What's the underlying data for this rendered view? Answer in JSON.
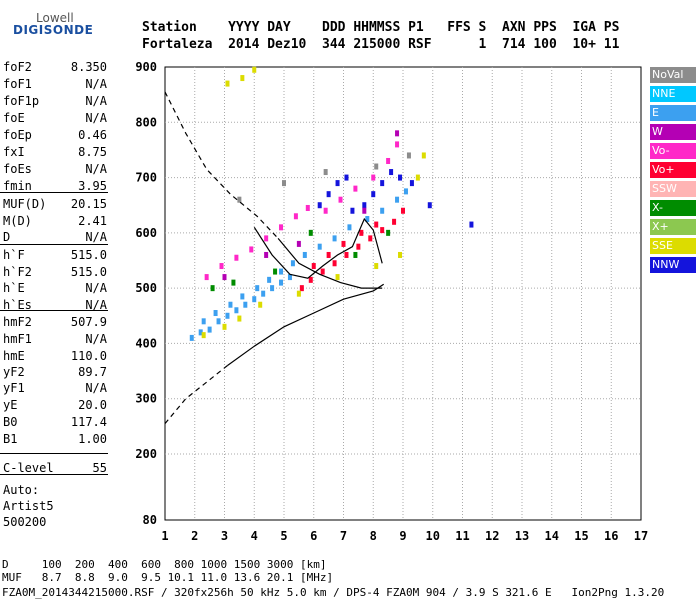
{
  "logo": {
    "top": "Lowell",
    "bottom": "DIGISONDE"
  },
  "header": {
    "line1": "Station    YYYY DAY    DDD HHMMSS P1   FFS S  AXN PPS  IGA PS",
    "line2": "Fortaleza  2014 Dez10  344 215000 RSF      1  714 100  10+ 11"
  },
  "params": [
    {
      "name": "foF2",
      "value": "8.350"
    },
    {
      "name": "foF1",
      "value": "N/A"
    },
    {
      "name": "foF1p",
      "value": "N/A"
    },
    {
      "name": "foE",
      "value": "N/A"
    },
    {
      "name": "foEp",
      "value": "0.46"
    },
    {
      "name": "fxI",
      "value": "8.75"
    },
    {
      "name": "foEs",
      "value": "N/A"
    },
    {
      "name": "fmin",
      "value": "3.95"
    },
    {
      "name": "MUF(D)",
      "value": "20.15"
    },
    {
      "name": "M(D)",
      "value": "2.41"
    },
    {
      "name": "D",
      "value": "N/A"
    },
    {
      "name": "h`F",
      "value": "515.0"
    },
    {
      "name": "h`F2",
      "value": "515.0"
    },
    {
      "name": "h`E",
      "value": "N/A"
    },
    {
      "name": "h`Es",
      "value": "N/A"
    },
    {
      "name": "hmF2",
      "value": "507.9"
    },
    {
      "name": "hmF1",
      "value": "N/A"
    },
    {
      "name": "hmE",
      "value": "110.0"
    },
    {
      "name": "yF2",
      "value": "89.7"
    },
    {
      "name": "yF1",
      "value": "N/A"
    },
    {
      "name": "yE",
      "value": "20.0"
    },
    {
      "name": "B0",
      "value": "117.4"
    },
    {
      "name": "B1",
      "value": "1.00"
    },
    {
      "name": "C-level",
      "value": "55"
    }
  ],
  "misc": {
    "auto": "Auto:",
    "artist": "Artist5",
    "version": "500200"
  },
  "legend": [
    {
      "label": "NoVal",
      "color": "#8c8c8c"
    },
    {
      "label": "NNE",
      "color": "#00c8ff"
    },
    {
      "label": "E",
      "color": "#3ca0f0"
    },
    {
      "label": "W",
      "color": "#b400b4"
    },
    {
      "label": "Vo-",
      "color": "#ff28c8"
    },
    {
      "label": "Vo+",
      "color": "#ff0032"
    },
    {
      "label": "SSW",
      "color": "#ffb4b4"
    },
    {
      "label": "X-",
      "color": "#008c00"
    },
    {
      "label": "X+",
      "color": "#8cc850"
    },
    {
      "label": "SSE",
      "color": "#dcdc00"
    },
    {
      "label": "NNW",
      "color": "#1414dc"
    }
  ],
  "footer": {
    "line1": "D     100  200  400  600  800 1000 1500 3000 [km]",
    "line2": "MUF   8.7  8.8  9.0  9.5 10.1 11.0 13.6 20.1 [MHz]",
    "line3": "FZA0M_2014344215000.RSF / 320fx256h 50 kHz 5.0 km / DPS-4 FZA0M 904 / 3.9 S 321.6 E   Ion2Png 1.3.20"
  },
  "chart_data": {
    "type": "scatter",
    "title": "",
    "xlabel": "",
    "ylabel": "",
    "x_ticks": [
      1,
      2,
      3,
      4,
      5,
      6,
      7,
      8,
      9,
      10,
      11,
      12,
      13,
      14,
      15,
      16,
      17
    ],
    "y_ticks": [
      80,
      200,
      300,
      400,
      500,
      600,
      700,
      800,
      900
    ],
    "xlim": [
      1,
      17
    ],
    "ylim": [
      80,
      900
    ],
    "grid": "dotted",
    "legend_placement": "right",
    "series": [
      {
        "color": "#3ca0f0",
        "points": [
          [
            1.9,
            410
          ],
          [
            2.2,
            420
          ],
          [
            2.5,
            425
          ],
          [
            2.8,
            440
          ],
          [
            3.1,
            450
          ],
          [
            3.4,
            460
          ],
          [
            3.7,
            470
          ],
          [
            4.0,
            480
          ],
          [
            4.3,
            490
          ],
          [
            4.6,
            500
          ],
          [
            4.9,
            510
          ],
          [
            5.2,
            520
          ],
          [
            2.3,
            440
          ],
          [
            2.7,
            455
          ],
          [
            3.2,
            470
          ],
          [
            3.6,
            485
          ],
          [
            4.1,
            500
          ],
          [
            4.5,
            515
          ],
          [
            4.9,
            530
          ],
          [
            5.3,
            545
          ],
          [
            5.7,
            560
          ],
          [
            6.2,
            575
          ],
          [
            6.7,
            590
          ],
          [
            7.2,
            610
          ],
          [
            7.8,
            625
          ],
          [
            8.3,
            640
          ],
          [
            8.8,
            660
          ],
          [
            9.1,
            675
          ]
        ]
      },
      {
        "color": "#ff0032",
        "points": [
          [
            5.6,
            500
          ],
          [
            5.9,
            515
          ],
          [
            6.3,
            530
          ],
          [
            6.7,
            545
          ],
          [
            7.1,
            560
          ],
          [
            7.5,
            575
          ],
          [
            7.9,
            590
          ],
          [
            8.3,
            605
          ],
          [
            8.7,
            620
          ],
          [
            9.0,
            640
          ],
          [
            6.0,
            540
          ],
          [
            6.5,
            560
          ],
          [
            7.0,
            580
          ],
          [
            7.6,
            600
          ],
          [
            8.1,
            615
          ]
        ]
      },
      {
        "color": "#ff28c8",
        "points": [
          [
            2.4,
            520
          ],
          [
            2.9,
            540
          ],
          [
            3.4,
            555
          ],
          [
            3.9,
            570
          ],
          [
            4.4,
            590
          ],
          [
            4.9,
            610
          ],
          [
            5.4,
            630
          ],
          [
            5.8,
            645
          ],
          [
            6.4,
            640
          ],
          [
            6.9,
            660
          ],
          [
            7.4,
            680
          ],
          [
            8.0,
            700
          ],
          [
            8.5,
            730
          ],
          [
            8.8,
            760
          ]
        ]
      },
      {
        "color": "#1414dc",
        "points": [
          [
            6.2,
            650
          ],
          [
            6.5,
            670
          ],
          [
            6.8,
            690
          ],
          [
            7.1,
            700
          ],
          [
            7.3,
            640
          ],
          [
            7.7,
            650
          ],
          [
            8.0,
            670
          ],
          [
            8.3,
            690
          ],
          [
            8.6,
            710
          ],
          [
            8.9,
            700
          ],
          [
            9.3,
            690
          ],
          [
            9.9,
            650
          ],
          [
            11.3,
            615
          ]
        ]
      },
      {
        "color": "#dcdc00",
        "points": [
          [
            2.3,
            415
          ],
          [
            3.0,
            430
          ],
          [
            3.5,
            445
          ],
          [
            4.2,
            470
          ],
          [
            5.5,
            490
          ],
          [
            6.8,
            520
          ],
          [
            8.1,
            540
          ],
          [
            8.9,
            560
          ],
          [
            9.5,
            700
          ],
          [
            9.7,
            740
          ],
          [
            3.1,
            870
          ],
          [
            3.6,
            880
          ],
          [
            4.0,
            895
          ]
        ]
      },
      {
        "color": "#008c00",
        "points": [
          [
            2.6,
            500
          ],
          [
            3.3,
            510
          ],
          [
            4.7,
            530
          ],
          [
            5.9,
            600
          ],
          [
            7.4,
            560
          ],
          [
            8.5,
            600
          ]
        ]
      },
      {
        "color": "#b400b4",
        "points": [
          [
            3.0,
            520
          ],
          [
            4.4,
            560
          ],
          [
            5.5,
            580
          ],
          [
            7.7,
            640
          ],
          [
            8.8,
            780
          ]
        ]
      },
      {
        "color": "#8c8c8c",
        "points": [
          [
            3.5,
            660
          ],
          [
            5.0,
            690
          ],
          [
            6.4,
            710
          ],
          [
            8.1,
            720
          ],
          [
            9.2,
            740
          ]
        ]
      }
    ],
    "trace_lines": [
      {
        "style": "dashed",
        "points": [
          [
            1.0,
            855
          ],
          [
            1.7,
            780
          ],
          [
            2.4,
            715
          ],
          [
            3.2,
            670
          ],
          [
            4.1,
            630
          ],
          [
            4.8,
            590
          ]
        ]
      },
      {
        "style": "solid",
        "points": [
          [
            4.8,
            590
          ],
          [
            5.5,
            545
          ],
          [
            6.2,
            525
          ],
          [
            6.9,
            510
          ],
          [
            7.6,
            500
          ],
          [
            8.3,
            500
          ]
        ]
      },
      {
        "style": "dashed",
        "points": [
          [
            1.0,
            255
          ],
          [
            1.7,
            300
          ],
          [
            2.4,
            330
          ],
          [
            3.1,
            360
          ]
        ]
      },
      {
        "style": "solid",
        "points": [
          [
            3.1,
            360
          ],
          [
            4.0,
            395
          ],
          [
            5.0,
            430
          ],
          [
            6.0,
            455
          ],
          [
            7.0,
            480
          ],
          [
            8.0,
            495
          ],
          [
            8.35,
            507
          ]
        ]
      },
      {
        "style": "solid",
        "points": [
          [
            4.0,
            610
          ],
          [
            4.6,
            560
          ],
          [
            5.2,
            525
          ],
          [
            5.8,
            518
          ],
          [
            6.3,
            540
          ],
          [
            6.8,
            560
          ],
          [
            7.3,
            575
          ],
          [
            7.7,
            625
          ],
          [
            8.0,
            605
          ],
          [
            8.3,
            545
          ]
        ]
      }
    ]
  }
}
